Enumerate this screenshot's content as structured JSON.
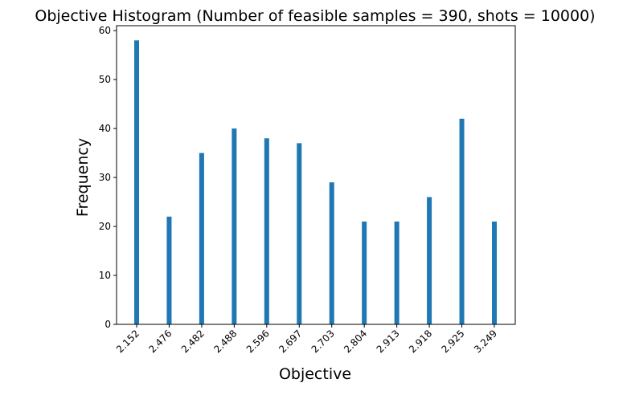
{
  "chart_data": {
    "type": "bar",
    "title": "Objective Histogram (Number of feasible samples = 390, shots = 10000)",
    "xlabel": "Objective",
    "ylabel": "Frequency",
    "categories": [
      "2.152",
      "2.476",
      "2.482",
      "2.488",
      "2.596",
      "2.697",
      "2.703",
      "2.804",
      "2.913",
      "2.918",
      "2.925",
      "3.249"
    ],
    "values": [
      58,
      22,
      35,
      40,
      38,
      37,
      29,
      21,
      21,
      26,
      42,
      21
    ],
    "ylim": [
      0,
      61
    ],
    "yticks": [
      0,
      10,
      20,
      30,
      40,
      50,
      60
    ],
    "bar_color": "#1f77b4",
    "grid": false,
    "legend": "none",
    "xtick_rotation_deg": 45
  }
}
